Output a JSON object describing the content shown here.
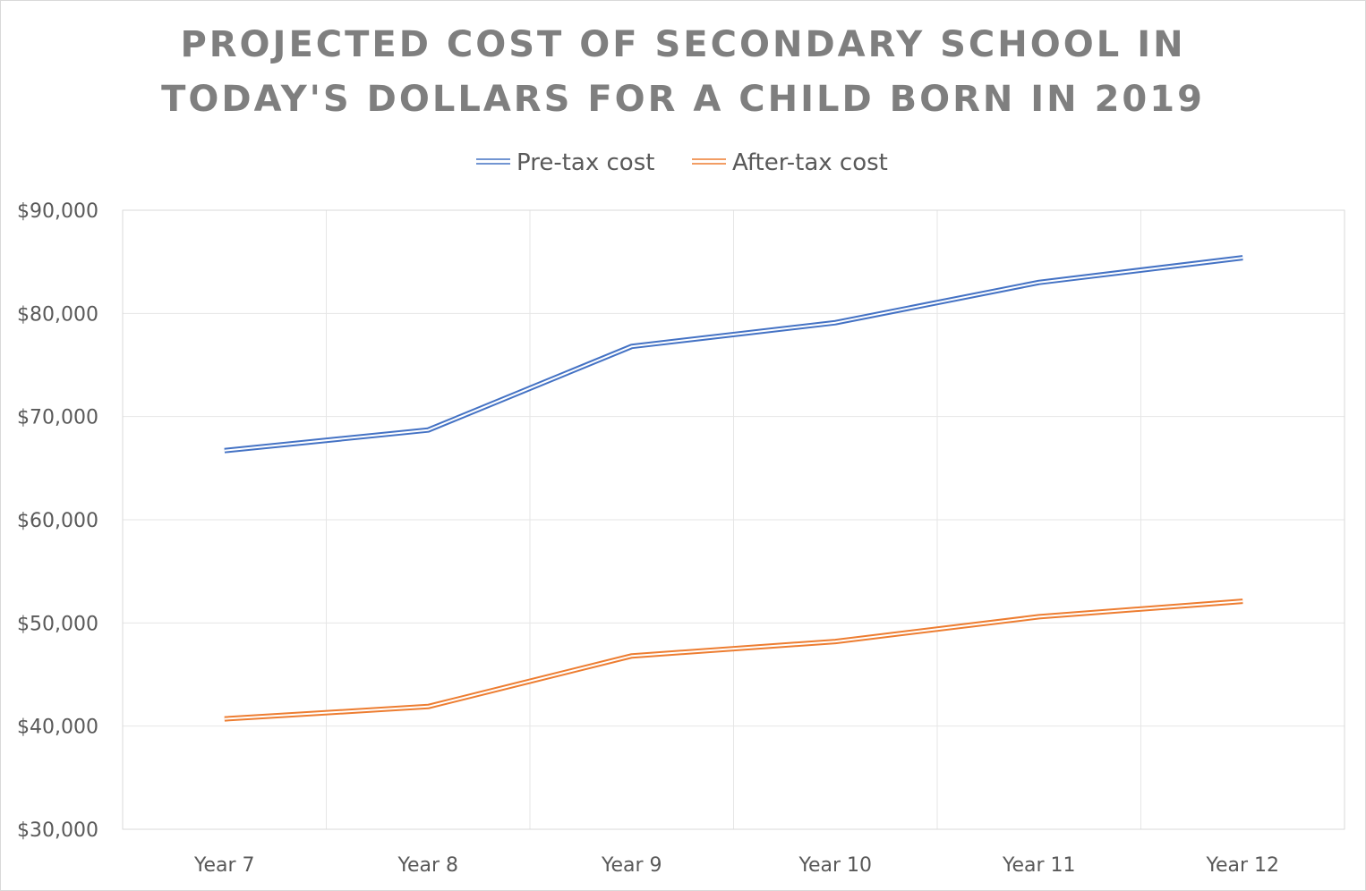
{
  "chart_data": {
    "type": "line",
    "title_lines": [
      "PROJECTED COST OF SECONDARY SCHOOL IN",
      "TODAY'S DOLLARS FOR A CHILD BORN IN 2019"
    ],
    "categories": [
      "Year 7",
      "Year 8",
      "Year 9",
      "Year 10",
      "Year 11",
      "Year 12"
    ],
    "series": [
      {
        "name": "Pre-tax cost",
        "color": "#4472c4",
        "values": [
          66700,
          68700,
          76800,
          79100,
          83000,
          85400
        ]
      },
      {
        "name": "After-tax cost",
        "color": "#ed7d31",
        "values": [
          40700,
          41900,
          46800,
          48200,
          50600,
          52100
        ]
      }
    ],
    "y_ticks": [
      "$30,000",
      "$40,000",
      "$50,000",
      "$60,000",
      "$70,000",
      "$80,000",
      "$90,000"
    ],
    "ylim": [
      30000,
      90000
    ],
    "xlabel": "",
    "ylabel": "",
    "grid": true,
    "legend": "top-center"
  }
}
